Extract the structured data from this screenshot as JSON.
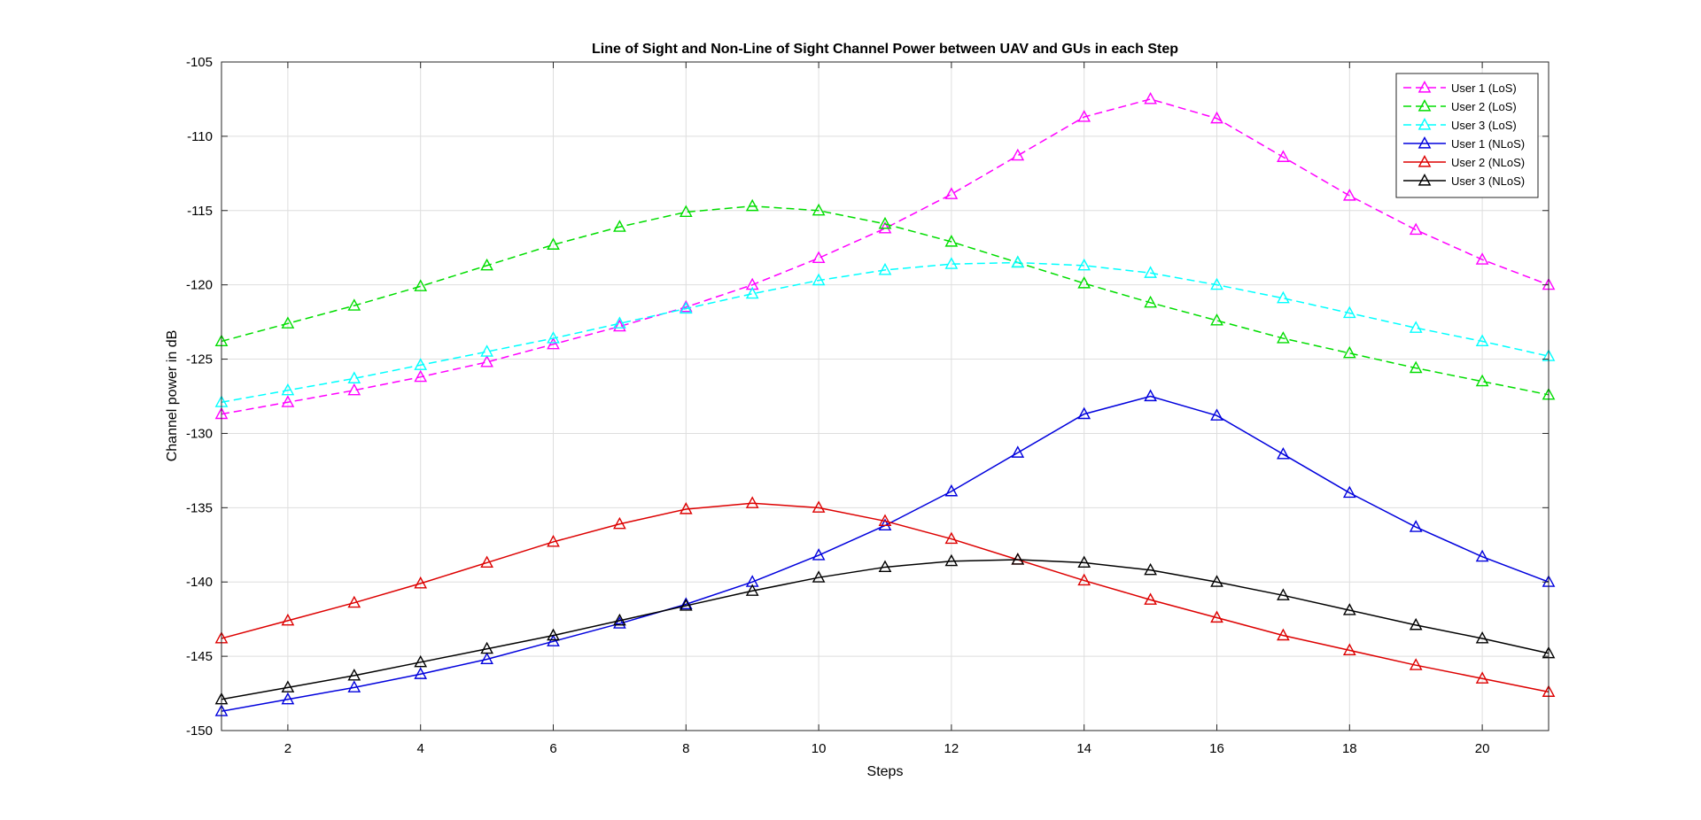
{
  "chart_data": {
    "type": "line",
    "title": "Line of Sight and Non-Line of Sight Channel Power between UAV and GUs in each Step",
    "xlabel": "Steps",
    "ylabel": "Channel power in dB",
    "xlim": [
      1,
      21
    ],
    "ylim": [
      -150,
      -105
    ],
    "xticks": [
      2,
      4,
      6,
      8,
      10,
      12,
      14,
      16,
      18,
      20
    ],
    "yticks": [
      -150,
      -145,
      -140,
      -135,
      -130,
      -125,
      -120,
      -115,
      -110,
      -105
    ],
    "grid": true,
    "legend_position": "top-right",
    "marker": "triangle",
    "x": [
      1,
      2,
      3,
      4,
      5,
      6,
      7,
      8,
      9,
      10,
      11,
      12,
      13,
      14,
      15,
      16,
      17,
      18,
      19,
      20,
      21
    ],
    "series": [
      {
        "name": "User 1 (LoS)",
        "color": "#ff00ff",
        "style": "dashed",
        "values": [
          -128.7,
          -127.9,
          -127.1,
          -126.2,
          -125.2,
          -124.0,
          -122.8,
          -121.5,
          -120.0,
          -118.2,
          -116.2,
          -113.9,
          -111.3,
          -108.7,
          -107.5,
          -108.8,
          -111.4,
          -114.0,
          -116.3,
          -118.3,
          -120.0
        ]
      },
      {
        "name": "User 2 (LoS)",
        "color": "#00dd00",
        "style": "dashed",
        "values": [
          -123.8,
          -122.6,
          -121.4,
          -120.1,
          -118.7,
          -117.3,
          -116.1,
          -115.1,
          -114.7,
          -115.0,
          -115.9,
          -117.1,
          -118.5,
          -119.9,
          -121.2,
          -122.4,
          -123.6,
          -124.6,
          -125.6,
          -126.5,
          -127.4
        ]
      },
      {
        "name": "User 3 (LoS)",
        "color": "#00ffff",
        "style": "dashed",
        "values": [
          -127.9,
          -127.1,
          -126.3,
          -125.4,
          -124.5,
          -123.6,
          -122.6,
          -121.6,
          -120.6,
          -119.7,
          -119.0,
          -118.6,
          -118.5,
          -118.7,
          -119.2,
          -120.0,
          -120.9,
          -121.9,
          -122.9,
          -123.8,
          -124.8
        ]
      },
      {
        "name": "User 1 (NLoS)",
        "color": "#0000dd",
        "style": "solid",
        "values": [
          -148.7,
          -147.9,
          -147.1,
          -146.2,
          -145.2,
          -144.0,
          -142.8,
          -141.5,
          -140.0,
          -138.2,
          -136.2,
          -133.9,
          -131.3,
          -128.7,
          -127.5,
          -128.8,
          -131.4,
          -134.0,
          -136.3,
          -138.3,
          -140.0
        ]
      },
      {
        "name": "User 2 (NLoS)",
        "color": "#dd0000",
        "style": "solid",
        "values": [
          -143.8,
          -142.6,
          -141.4,
          -140.1,
          -138.7,
          -137.3,
          -136.1,
          -135.1,
          -134.7,
          -135.0,
          -135.9,
          -137.1,
          -138.5,
          -139.9,
          -141.2,
          -142.4,
          -143.6,
          -144.6,
          -145.6,
          -146.5,
          -147.4
        ]
      },
      {
        "name": "User 3 (NLoS)",
        "color": "#000000",
        "style": "solid",
        "values": [
          -147.9,
          -147.1,
          -146.3,
          -145.4,
          -144.5,
          -143.6,
          -142.6,
          -141.6,
          -140.6,
          -139.7,
          -139.0,
          -138.6,
          -138.5,
          -138.7,
          -139.2,
          -140.0,
          -140.9,
          -141.9,
          -142.9,
          -143.8,
          -144.8
        ]
      }
    ]
  }
}
